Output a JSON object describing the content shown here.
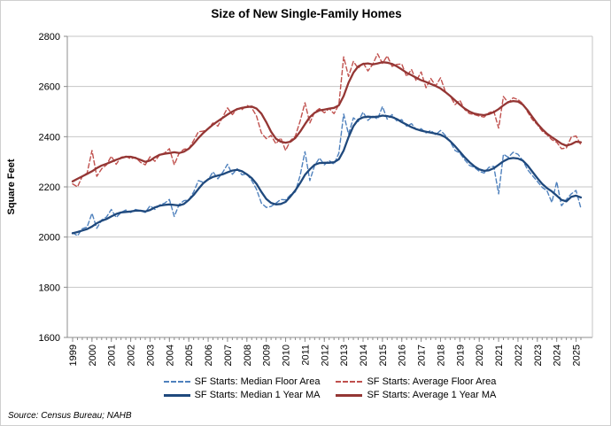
{
  "title": "Size of New Single-Family Homes",
  "source_note": "Source: Census Bureau; NAHB",
  "chart_data": {
    "type": "line",
    "title": "Size of New Single-Family Homes",
    "xlabel": "",
    "ylabel": "Square Feet",
    "ylim": [
      1600,
      2800
    ],
    "ytick_step": 200,
    "grid": "horizontal",
    "legend_position": "bottom",
    "x_frequency": "quarterly",
    "x_start_year": 1999,
    "x_end_label": "2025 Q2",
    "xtick_years": [
      1999,
      2000,
      2001,
      2002,
      2003,
      2004,
      2005,
      2006,
      2007,
      2008,
      2009,
      2010,
      2011,
      2012,
      2013,
      2014,
      2015,
      2016,
      2017,
      2018,
      2019,
      2020,
      2021,
      2022,
      2023,
      2024,
      2025
    ],
    "series": [
      {
        "name": "SF Starts: Median Floor Area",
        "color": "#4f81bd",
        "style": "dashed",
        "values": [
          2018,
          2005,
          2033,
          2040,
          2095,
          2035,
          2068,
          2080,
          2110,
          2078,
          2098,
          2108,
          2098,
          2110,
          2105,
          2098,
          2125,
          2110,
          2128,
          2135,
          2150,
          2082,
          2130,
          2145,
          2148,
          2180,
          2225,
          2218,
          2228,
          2260,
          2232,
          2258,
          2290,
          2250,
          2272,
          2248,
          2252,
          2225,
          2190,
          2135,
          2118,
          2122,
          2135,
          2150,
          2148,
          2168,
          2180,
          2245,
          2340,
          2225,
          2285,
          2315,
          2288,
          2305,
          2290,
          2335,
          2490,
          2410,
          2475,
          2460,
          2498,
          2465,
          2482,
          2470,
          2520,
          2470,
          2488,
          2462,
          2468,
          2442,
          2452,
          2428,
          2432,
          2415,
          2425,
          2408,
          2425,
          2405,
          2380,
          2345,
          2335,
          2308,
          2285,
          2278,
          2262,
          2255,
          2278,
          2282,
          2172,
          2330,
          2318,
          2338,
          2330,
          2305,
          2268,
          2245,
          2222,
          2198,
          2185,
          2138,
          2221,
          2125,
          2150,
          2172,
          2186,
          2115
        ]
      },
      {
        "name": "SF Starts: Average Floor Area",
        "color": "#c0504d",
        "style": "dashed",
        "values": [
          2212,
          2200,
          2242,
          2255,
          2345,
          2242,
          2272,
          2288,
          2322,
          2290,
          2318,
          2322,
          2312,
          2318,
          2298,
          2288,
          2320,
          2302,
          2328,
          2335,
          2352,
          2288,
          2335,
          2350,
          2352,
          2385,
          2420,
          2422,
          2432,
          2455,
          2442,
          2478,
          2515,
          2488,
          2512,
          2508,
          2525,
          2515,
          2482,
          2415,
          2392,
          2405,
          2372,
          2395,
          2345,
          2385,
          2402,
          2462,
          2535,
          2455,
          2498,
          2512,
          2495,
          2512,
          2492,
          2528,
          2718,
          2640,
          2700,
          2672,
          2695,
          2662,
          2688,
          2730,
          2692,
          2722,
          2680,
          2688,
          2690,
          2640,
          2668,
          2622,
          2658,
          2595,
          2632,
          2602,
          2635,
          2580,
          2562,
          2528,
          2545,
          2508,
          2492,
          2488,
          2482,
          2478,
          2495,
          2502,
          2434,
          2560,
          2535,
          2555,
          2548,
          2532,
          2498,
          2468,
          2448,
          2422,
          2408,
          2388,
          2378,
          2352,
          2355,
          2398,
          2403,
          2367
        ]
      },
      {
        "name": "SF Starts: Median 1 Year MA",
        "color": "#1f497d",
        "style": "solid",
        "values": [
          2015,
          2020,
          2026,
          2032,
          2042,
          2055,
          2065,
          2072,
          2082,
          2092,
          2098,
          2100,
          2102,
          2105,
          2105,
          2102,
          2108,
          2118,
          2125,
          2128,
          2130,
          2128,
          2126,
          2132,
          2148,
          2168,
          2192,
          2215,
          2230,
          2240,
          2245,
          2250,
          2258,
          2265,
          2268,
          2262,
          2250,
          2235,
          2212,
          2180,
          2152,
          2136,
          2130,
          2132,
          2140,
          2162,
          2186,
          2215,
          2248,
          2270,
          2288,
          2295,
          2296,
          2296,
          2298,
          2310,
          2345,
          2398,
          2442,
          2468,
          2477,
          2480,
          2478,
          2480,
          2484,
          2482,
          2478,
          2470,
          2458,
          2448,
          2438,
          2430,
          2424,
          2420,
          2416,
          2412,
          2408,
          2398,
          2382,
          2362,
          2340,
          2318,
          2298,
          2282,
          2270,
          2264,
          2266,
          2274,
          2288,
          2302,
          2312,
          2315,
          2313,
          2305,
          2285,
          2260,
          2235,
          2212,
          2195,
          2182,
          2165,
          2148,
          2142,
          2160,
          2165,
          2158
        ]
      },
      {
        "name": "SF Starts: Average 1 Year MA",
        "color": "#943634",
        "style": "solid",
        "values": [
          2222,
          2232,
          2242,
          2252,
          2262,
          2275,
          2285,
          2292,
          2300,
          2308,
          2315,
          2320,
          2320,
          2315,
          2308,
          2300,
          2305,
          2318,
          2328,
          2332,
          2335,
          2338,
          2335,
          2340,
          2352,
          2372,
          2395,
          2415,
          2432,
          2448,
          2462,
          2475,
          2488,
          2500,
          2510,
          2515,
          2518,
          2520,
          2512,
          2492,
          2458,
          2420,
          2392,
          2380,
          2376,
          2380,
          2395,
          2420,
          2450,
          2478,
          2495,
          2505,
          2508,
          2512,
          2515,
          2525,
          2562,
          2615,
          2655,
          2680,
          2690,
          2692,
          2688,
          2692,
          2697,
          2695,
          2690,
          2680,
          2668,
          2655,
          2645,
          2635,
          2625,
          2618,
          2610,
          2602,
          2592,
          2578,
          2562,
          2545,
          2528,
          2512,
          2500,
          2492,
          2488,
          2486,
          2490,
          2498,
          2510,
          2525,
          2538,
          2542,
          2540,
          2528,
          2505,
          2478,
          2452,
          2430,
          2412,
          2398,
          2385,
          2372,
          2364,
          2370,
          2380,
          2378
        ]
      }
    ]
  }
}
